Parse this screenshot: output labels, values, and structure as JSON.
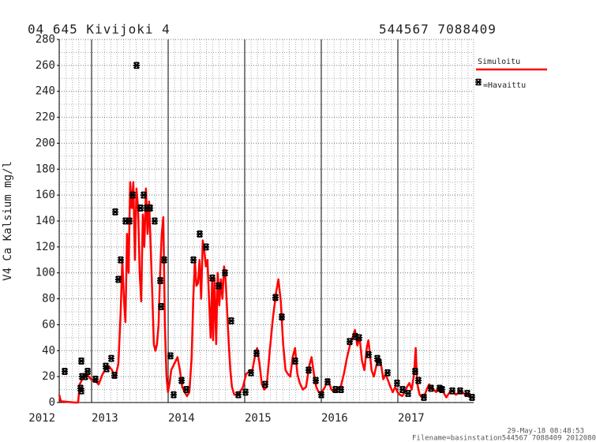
{
  "chart_data": {
    "type": "line",
    "title": "04 645 Kivijoki 4",
    "subtitle": "544567 7088409",
    "ylabel": "V4 Ca Kalsium mg/l",
    "annotations": [
      "29-May-18 08:48:53",
      "Filename=basinstation544567 7088409 2012080"
    ],
    "xlim": [
      2012.577,
      2017.99
    ],
    "xticks": [
      2012,
      2013,
      2014,
      2015,
      2016,
      2017
    ],
    "ylim": [
      0,
      280
    ],
    "yticks": [
      0,
      20,
      40,
      60,
      80,
      100,
      120,
      140,
      160,
      180,
      200,
      220,
      240,
      260,
      280
    ],
    "grid": true,
    "legend": "right",
    "series": [
      {
        "name": "Simuloitu",
        "type": "line",
        "color": "#ff0000",
        "x": [
          2012.577,
          2012.598,
          2012.783,
          2012.824,
          2012.845,
          2012.886,
          2012.938,
          2012.989,
          2013.041,
          2013.092,
          2013.144,
          2013.185,
          2013.226,
          2013.267,
          2013.308,
          2013.35,
          2013.38,
          2013.401,
          2013.422,
          2013.442,
          2013.463,
          2013.483,
          2013.504,
          2013.525,
          2013.545,
          2013.566,
          2013.586,
          2013.607,
          2013.628,
          2013.648,
          2013.669,
          2013.689,
          2013.71,
          2013.731,
          2013.751,
          2013.772,
          2013.792,
          2013.813,
          2013.834,
          2013.854,
          2013.875,
          2013.895,
          2013.916,
          2013.937,
          2013.957,
          2013.978,
          2013.998,
          2014.019,
          2014.04,
          2014.081,
          2014.122,
          2014.153,
          2014.184,
          2014.215,
          2014.246,
          2014.277,
          2014.307,
          2014.328,
          2014.349,
          2014.369,
          2014.39,
          2014.41,
          2014.431,
          2014.452,
          2014.472,
          2014.493,
          2014.513,
          2014.534,
          2014.555,
          2014.575,
          2014.586,
          2014.606,
          2014.627,
          2014.647,
          2014.668,
          2014.689,
          2014.709,
          2014.73,
          2014.75,
          2014.771,
          2014.792,
          2014.812,
          2014.833,
          2014.864,
          2014.895,
          2014.936,
          2014.977,
          2015.018,
          2015.059,
          2015.101,
          2015.131,
          2015.162,
          2015.193,
          2015.224,
          2015.255,
          2015.286,
          2015.327,
          2015.368,
          2015.41,
          2015.44,
          2015.471,
          2015.502,
          2015.533,
          2015.564,
          2015.595,
          2015.626,
          2015.657,
          2015.688,
          2015.719,
          2015.76,
          2015.801,
          2015.842,
          2015.873,
          2015.904,
          2015.935,
          2015.966,
          2016.007,
          2016.048,
          2016.089,
          2016.131,
          2016.172,
          2016.213,
          2016.254,
          2016.295,
          2016.337,
          2016.378,
          2016.409,
          2016.44,
          2016.47,
          2016.501,
          2016.532,
          2016.563,
          2016.594,
          2016.615,
          2016.635,
          2016.656,
          2016.687,
          2016.718,
          2016.749,
          2016.779,
          2016.81,
          2016.841,
          2016.872,
          2016.903,
          2016.934,
          2016.965,
          2016.996,
          2017.027,
          2017.058,
          2017.088,
          2017.119,
          2017.15,
          2017.181,
          2017.212,
          2017.233,
          2017.253,
          2017.284,
          2017.315,
          2017.346,
          2017.377,
          2017.408,
          2017.439,
          2017.47,
          2017.5,
          2017.531,
          2017.562,
          2017.593,
          2017.634,
          2017.676,
          2017.717,
          2017.758,
          2017.799,
          2017.84,
          2017.882,
          2017.923,
          2017.964
        ],
        "values": [
          6,
          1,
          0,
          0,
          14,
          19,
          22,
          18,
          17,
          14,
          22,
          26,
          28,
          25,
          19,
          30,
          70,
          110,
          80,
          62,
          130,
          100,
          170,
          150,
          170,
          110,
          165,
          150,
          100,
          78,
          145,
          120,
          165,
          130,
          155,
          120,
          85,
          45,
          40,
          45,
          60,
          100,
          130,
          143,
          60,
          20,
          8,
          15,
          25,
          30,
          35,
          25,
          12,
          8,
          5,
          8,
          35,
          80,
          110,
          90,
          92,
          110,
          80,
          125,
          117,
          105,
          110,
          80,
          50,
          95,
          48,
          95,
          45,
          100,
          75,
          95,
          80,
          105,
          95,
          70,
          45,
          25,
          12,
          6,
          6,
          8,
          12,
          22,
          24,
          25,
          35,
          42,
          30,
          14,
          10,
          12,
          40,
          65,
          85,
          95,
          78,
          45,
          25,
          22,
          20,
          35,
          42,
          22,
          15,
          10,
          12,
          28,
          35,
          22,
          12,
          8,
          8,
          12,
          18,
          10,
          8,
          10,
          12,
          22,
          35,
          45,
          50,
          56,
          44,
          50,
          32,
          25,
          42,
          48,
          38,
          25,
          20,
          28,
          35,
          30,
          18,
          22,
          17,
          12,
          8,
          12,
          8,
          6,
          5,
          8,
          12,
          15,
          10,
          22,
          42,
          15,
          6,
          4,
          5,
          10,
          14,
          12,
          10,
          8,
          12,
          10,
          8,
          4,
          8,
          9,
          6,
          8,
          8,
          6,
          5,
          3
        ]
      },
      {
        "name": "=Havaittu",
        "type": "scatter",
        "color": "#000000",
        "x": [
          2012.649,
          2012.855,
          2012.866,
          2012.866,
          2012.876,
          2012.917,
          2012.948,
          2013.051,
          2013.185,
          2013.196,
          2013.257,
          2013.299,
          2013.309,
          2013.35,
          2013.381,
          2013.443,
          2013.495,
          2013.536,
          2013.587,
          2013.639,
          2013.68,
          2013.721,
          2013.763,
          2013.824,
          2013.897,
          2013.907,
          2013.948,
          2014.031,
          2014.072,
          2014.175,
          2014.237,
          2014.33,
          2014.412,
          2014.495,
          2014.577,
          2014.66,
          2014.742,
          2014.824,
          2014.917,
          2015.01,
          2015.082,
          2015.154,
          2015.268,
          2015.402,
          2015.484,
          2015.659,
          2015.835,
          2015.928,
          2016.0,
          2016.082,
          2016.185,
          2016.257,
          2016.371,
          2016.443,
          2016.494,
          2016.618,
          2016.732,
          2016.752,
          2016.866,
          2016.989,
          2017.061,
          2017.134,
          2017.226,
          2017.268,
          2017.34,
          2017.433,
          2017.546,
          2017.577,
          2017.711,
          2017.814,
          2017.907,
          2017.969
        ],
        "values": [
          24,
          11,
          9,
          32,
          20,
          20,
          24,
          18,
          28,
          26,
          34,
          21,
          147,
          95,
          110,
          140,
          140,
          160,
          260,
          150,
          160,
          150,
          150,
          140,
          94,
          74,
          110,
          36,
          6,
          17,
          10,
          110,
          130,
          120,
          96,
          90,
          100,
          63,
          6,
          8,
          23,
          38,
          14,
          81,
          66,
          32,
          25,
          17,
          6,
          16,
          10,
          10,
          47,
          51,
          50,
          37,
          34,
          31,
          23,
          15,
          10,
          7,
          24,
          17,
          4,
          11,
          11,
          10,
          9,
          9,
          7,
          4
        ]
      }
    ]
  }
}
